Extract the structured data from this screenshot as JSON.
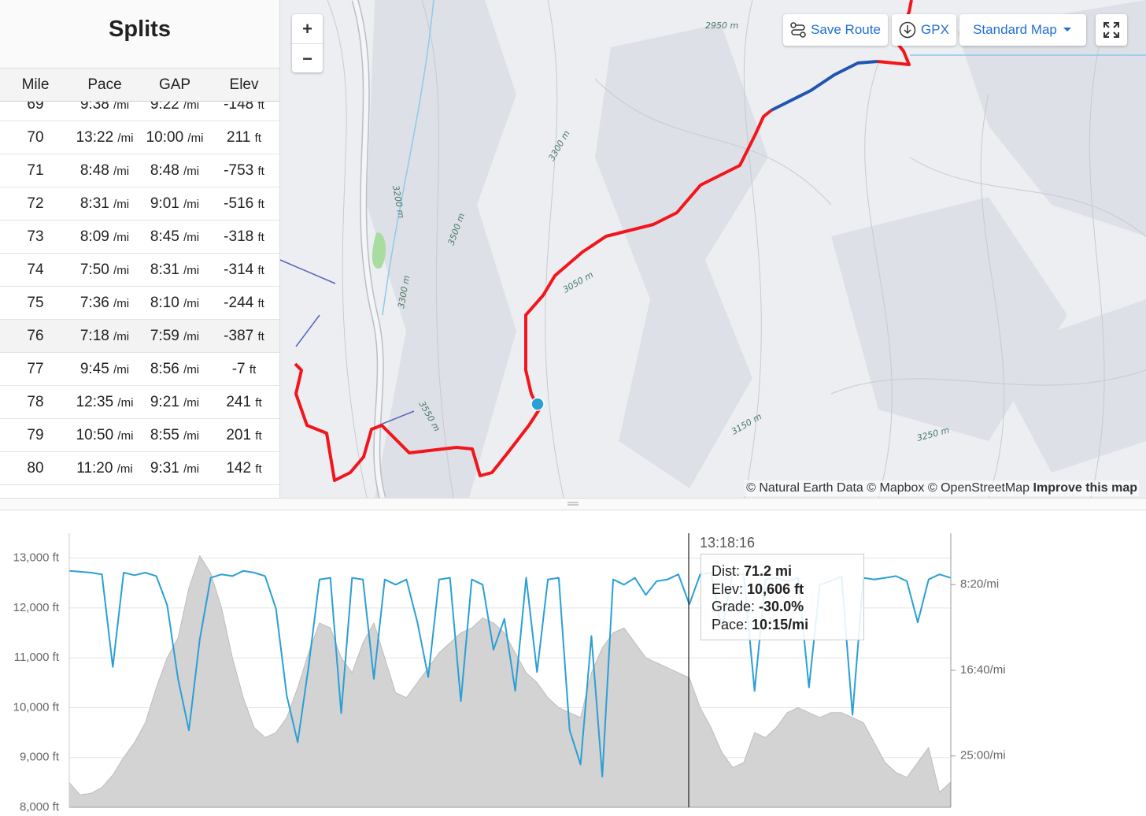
{
  "splits": {
    "title": "Splits",
    "headers": [
      "Mile",
      "Pace",
      "GAP",
      "Elev"
    ],
    "pace_unit": "/mi",
    "elev_unit": "ft",
    "rows": [
      [
        "69",
        "9:38",
        "9:22",
        "-148"
      ],
      [
        "70",
        "13:22",
        "10:00",
        "211"
      ],
      [
        "71",
        "8:48",
        "8:48",
        "-753"
      ],
      [
        "72",
        "8:31",
        "9:01",
        "-516"
      ],
      [
        "73",
        "8:09",
        "8:45",
        "-318"
      ],
      [
        "74",
        "7:50",
        "8:31",
        "-314"
      ],
      [
        "75",
        "7:36",
        "8:10",
        "-244"
      ],
      [
        "76",
        "7:18",
        "7:59",
        "-387"
      ],
      [
        "77",
        "9:45",
        "8:56",
        "-7"
      ],
      [
        "78",
        "12:35",
        "9:21",
        "241"
      ],
      [
        "79",
        "10:50",
        "8:55",
        "201"
      ],
      [
        "80",
        "11:20",
        "9:31",
        "142"
      ]
    ]
  },
  "map": {
    "zoom_in": "+",
    "zoom_out": "−",
    "save_route": "Save Route",
    "gpx": "GPX",
    "map_style": "Standard Map",
    "attribution": "© Natural Earth Data © Mapbox © OpenStreetMap",
    "improve": "Improve this map",
    "contour_labels": [
      "2950 m",
      "3300 m",
      "3200 m",
      "3500 m",
      "3050 m",
      "3300 m",
      "3550 m",
      "3150 m",
      "3250 m"
    ]
  },
  "tooltip": {
    "time": "13:18:16",
    "rows": [
      {
        "label": "Dist:",
        "value": "71.2 mi"
      },
      {
        "label": "Elev:",
        "value": "10,606 ft"
      },
      {
        "label": "Grade:",
        "value": "-30.0%"
      },
      {
        "label": "Pace:",
        "value": "10:15/mi"
      }
    ]
  },
  "chart_data": {
    "type": "line",
    "xlim": [
      0,
      101.3
    ],
    "ylim": [
      8000,
      13500
    ],
    "y2lim": [
      1800,
      200
    ],
    "grid": true,
    "yticks": [
      {
        "value": 8000,
        "label": "8,000 ft"
      },
      {
        "value": 9000,
        "label": "9,000 ft"
      },
      {
        "value": 10000,
        "label": "10,000 ft"
      },
      {
        "value": 11000,
        "label": "11,000 ft"
      },
      {
        "value": 12000,
        "label": "12,000 ft"
      },
      {
        "value": 13000,
        "label": "13,000 ft"
      }
    ],
    "y2ticks": [
      {
        "value": 500,
        "label": "8:20/mi"
      },
      {
        "value": 1000,
        "label": "16:40/mi"
      },
      {
        "value": 1500,
        "label": "25:00/mi"
      }
    ],
    "x": [
      0,
      1.25,
      2.5,
      3.75,
      5,
      6.25,
      7.5,
      8.75,
      10,
      11.25,
      12.5,
      13.75,
      15,
      16.25,
      17.5,
      18.75,
      20,
      21.25,
      22.5,
      23.75,
      25,
      26.25,
      27.5,
      28.75,
      30,
      31.25,
      32.5,
      33.75,
      35,
      36.25,
      37.5,
      38.75,
      40,
      41.25,
      42.5,
      43.75,
      45,
      46.25,
      47.5,
      48.75,
      50,
      51.25,
      52.5,
      53.75,
      55,
      56.25,
      57.5,
      58.75,
      60,
      61.25,
      62.5,
      63.75,
      65,
      66.25,
      67.5,
      68.75,
      70,
      71.25,
      72.5,
      73.75,
      75,
      76.25,
      77.5,
      78.75,
      80,
      81.25,
      82.5,
      83.75,
      85,
      86.25,
      87.5,
      88.75,
      90,
      91.25,
      92.5,
      93.75,
      95,
      96.25,
      97.5,
      98.75,
      100,
      101.25
    ],
    "series": [
      {
        "color": "#d3d3d3",
        "fill": true,
        "values": [
          8500,
          8250,
          8280,
          8400,
          8650,
          9000,
          9300,
          9700,
          10400,
          11000,
          11400,
          12400,
          13050,
          12700,
          12000,
          11000,
          10200,
          9600,
          9400,
          9500,
          9800,
          10400,
          11100,
          11700,
          11600,
          11000,
          10700,
          11300,
          11700,
          11000,
          10300,
          10200,
          10500,
          10800,
          11100,
          11300,
          11500,
          11600,
          11800,
          11700,
          11500,
          11100,
          10700,
          10500,
          10200,
          10000,
          9900,
          9800,
          10700,
          11200,
          11500,
          11600,
          11300,
          11000,
          10900,
          10800,
          10700,
          10600,
          10000,
          9600,
          9100,
          8800,
          8900,
          9500,
          9400,
          9600,
          9900,
          10000,
          9900,
          9800,
          9900,
          9900,
          9800,
          9700,
          9300,
          8900,
          8700,
          8600,
          8900,
          9200,
          8300,
          8500
        ]
      },
      {
        "color": "#2a9fd6",
        "axis": "y2",
        "values": [
          420,
          425,
          430,
          440,
          980,
          430,
          445,
          430,
          450,
          620,
          1050,
          1350,
          820,
          460,
          440,
          450,
          420,
          430,
          450,
          640,
          1150,
          1420,
          980,
          470,
          460,
          1250,
          460,
          470,
          1050,
          470,
          500,
          470,
          720,
          1040,
          470,
          460,
          1180,
          470,
          500,
          880,
          700,
          1120,
          460,
          1010,
          470,
          460,
          1350,
          1550,
          800,
          1620,
          470,
          500,
          460,
          560,
          480,
          470,
          440,
          615,
          440,
          430,
          760,
          430,
          440,
          1120,
          470,
          460,
          480,
          460,
          1100,
          500,
          480,
          450,
          1260,
          460,
          470,
          460,
          450,
          480,
          720,
          470,
          440,
          460
        ]
      }
    ]
  }
}
